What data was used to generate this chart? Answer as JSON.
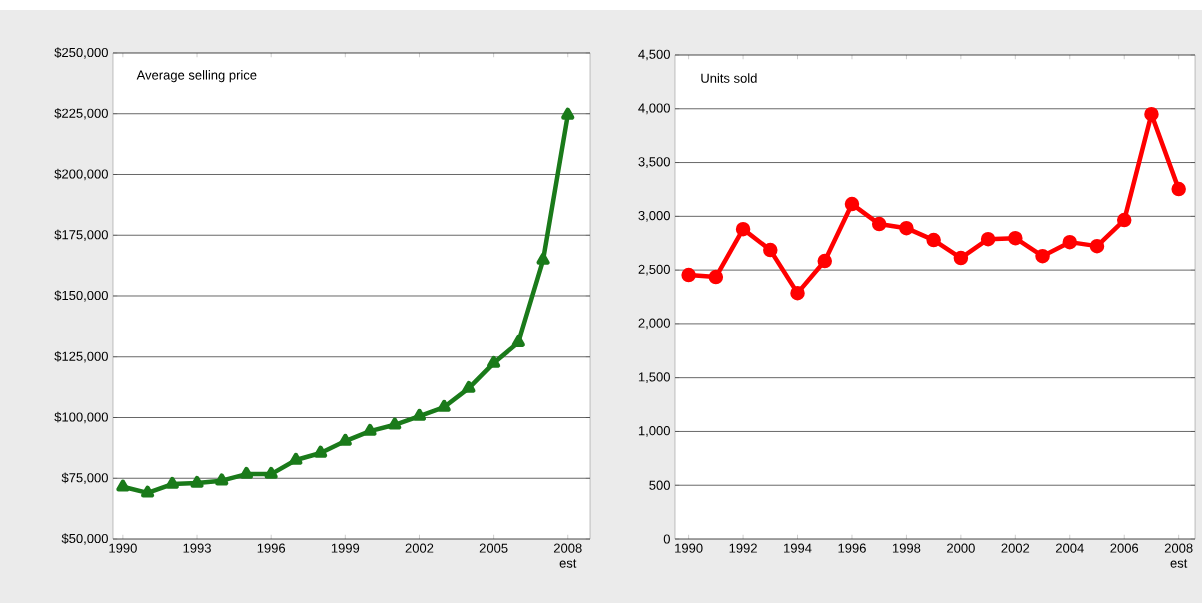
{
  "chart_data": [
    {
      "type": "line",
      "title": "Average selling price",
      "x": [
        1990,
        1991,
        1992,
        1993,
        1994,
        1995,
        1996,
        1997,
        1998,
        1999,
        2000,
        2001,
        2002,
        2003,
        2004,
        2005,
        2006,
        2007,
        2008
      ],
      "series": [
        {
          "color": "#1a7a1a",
          "values": [
            71500,
            69000,
            72600,
            73000,
            74000,
            76700,
            76700,
            82500,
            85400,
            90300,
            94400,
            97000,
            100600,
            104300,
            112100,
            122400,
            131000,
            164800,
            224500
          ]
        }
      ],
      "xlim": [
        1989.6,
        2008.9
      ],
      "xticks": [
        1990,
        1993,
        1996,
        1999,
        2002,
        2005,
        {
          "value": 2008,
          "label": "2008 est"
        }
      ],
      "ylim": [
        50000,
        250000
      ],
      "yticks": [
        {
          "value": 50000,
          "label": "$50,000"
        },
        {
          "value": 75000,
          "label": "$75,000"
        },
        {
          "value": 100000,
          "label": "$100,000"
        },
        {
          "value": 125000,
          "label": "$125,000"
        },
        {
          "value": 150000,
          "label": "$150,000"
        },
        {
          "value": 175000,
          "label": "$175,000"
        },
        {
          "value": 200000,
          "label": "$200,000"
        },
        {
          "value": 225000,
          "label": "$225,000"
        },
        {
          "value": 250000,
          "label": "$250,000"
        }
      ],
      "grid": "y",
      "marker": "triangle",
      "line_style": "solid"
    },
    {
      "type": "line",
      "title": "Units sold",
      "x": [
        1990,
        1991,
        1992,
        1993,
        1994,
        1995,
        1996,
        1997,
        1998,
        1999,
        2000,
        2001,
        2002,
        2003,
        2004,
        2005,
        2006,
        2007,
        2008
      ],
      "series": [
        {
          "color": "#ff0000",
          "values": [
            2454,
            2435,
            2881,
            2686,
            2286,
            2584,
            3114,
            2928,
            2890,
            2779,
            2612,
            2788,
            2797,
            2630,
            2760,
            2723,
            2965,
            3950,
            3253
          ]
        }
      ],
      "xlim": [
        1989.5,
        2008.6
      ],
      "xticks": [
        1990,
        1992,
        1994,
        1996,
        1998,
        2000,
        2002,
        2004,
        2006,
        {
          "value": 2008,
          "label": "2008 est"
        }
      ],
      "ylim": [
        0,
        4500
      ],
      "yticks": [
        0,
        500,
        {
          "value": 1000,
          "label": "1,000"
        },
        {
          "value": 1500,
          "label": "1,500"
        },
        {
          "value": 2000,
          "label": "2,000"
        },
        {
          "value": 2500,
          "label": "2,500"
        },
        {
          "value": 3000,
          "label": "3,000"
        },
        {
          "value": 3500,
          "label": "3,500"
        },
        {
          "value": 4000,
          "label": "4,000"
        },
        {
          "value": 4500,
          "label": "4,500"
        }
      ],
      "grid": "y",
      "marker": "circle",
      "line_style": "solid"
    }
  ]
}
